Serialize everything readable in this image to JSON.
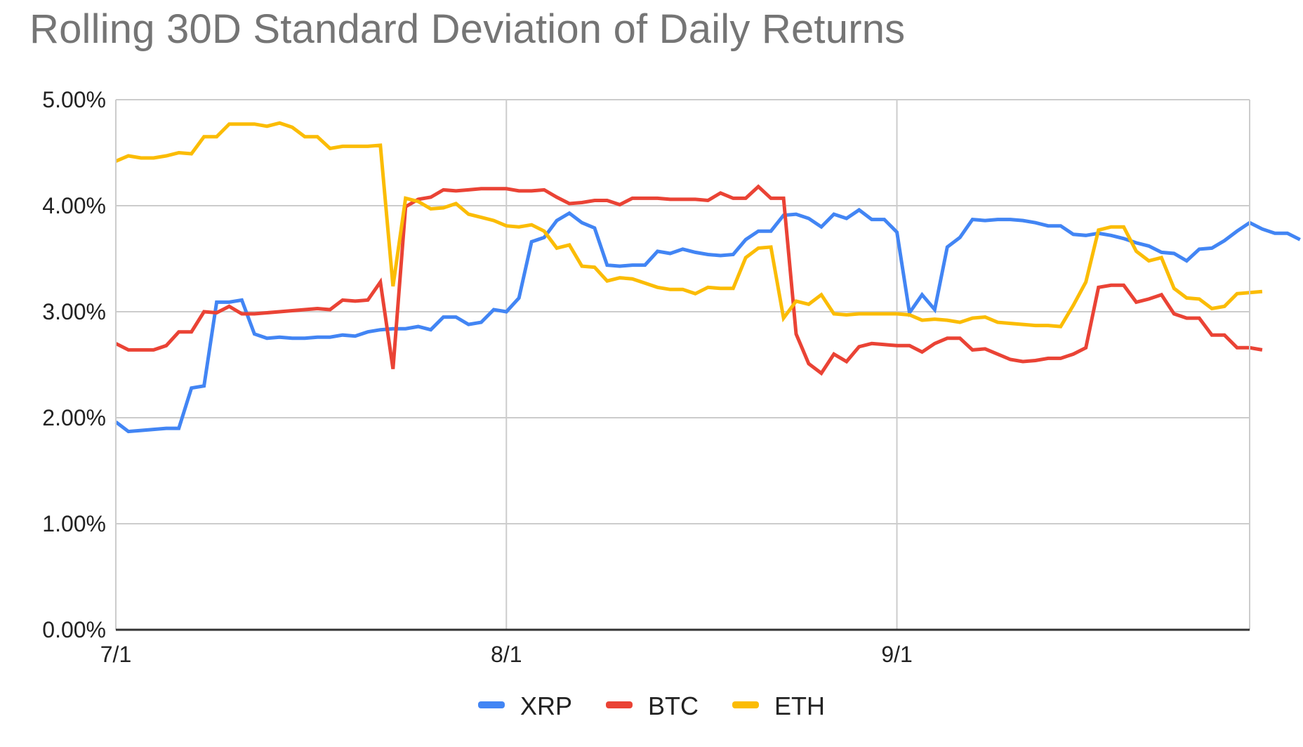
{
  "chart_data": {
    "type": "line",
    "title": "Rolling 30D Standard Deviation of Daily Returns",
    "xlabel": "",
    "ylabel": "",
    "ylim": [
      0,
      0.05
    ],
    "yticks": [
      {
        "value": 0.0,
        "label": "0.00%"
      },
      {
        "value": 0.01,
        "label": "1.00%"
      },
      {
        "value": 0.02,
        "label": "2.00%"
      },
      {
        "value": 0.03,
        "label": "3.00%"
      },
      {
        "value": 0.04,
        "label": "4.00%"
      },
      {
        "value": 0.05,
        "label": "5.00%"
      }
    ],
    "xticks": [
      {
        "value": 0,
        "label": "7/1"
      },
      {
        "value": 31,
        "label": "8/1"
      },
      {
        "value": 62,
        "label": "9/1"
      }
    ],
    "x_range": [
      0,
      90
    ],
    "x_note": "day offset from 7/1",
    "grid": true,
    "legend_position": "bottom",
    "series": [
      {
        "name": "XRP",
        "color": "#4285F4",
        "values": [
          1.96,
          1.87,
          1.88,
          1.89,
          1.9,
          1.9,
          2.28,
          2.3,
          3.09,
          3.09,
          3.11,
          2.79,
          2.75,
          2.76,
          2.75,
          2.75,
          2.76,
          2.76,
          2.78,
          2.77,
          2.81,
          2.83,
          2.84,
          2.84,
          2.86,
          2.83,
          2.95,
          2.95,
          2.88,
          2.9,
          3.02,
          3.0,
          3.13,
          3.66,
          3.7,
          3.86,
          3.93,
          3.84,
          3.79,
          3.44,
          3.43,
          3.44,
          3.44,
          3.57,
          3.55,
          3.59,
          3.56,
          3.54,
          3.53,
          3.54,
          3.68,
          3.76,
          3.76,
          3.91,
          3.92,
          3.88,
          3.8,
          3.92,
          3.88,
          3.96,
          3.87,
          3.87,
          3.75,
          2.99,
          3.16,
          3.02,
          3.61,
          3.7,
          3.87,
          3.86,
          3.87,
          3.87,
          3.86,
          3.84,
          3.81,
          3.81,
          3.73,
          3.72,
          3.74,
          3.72,
          3.69,
          3.65,
          3.62,
          3.56,
          3.55,
          3.48,
          3.59,
          3.6,
          3.67,
          3.76,
          3.84,
          3.78,
          3.74,
          3.74,
          3.68
        ]
      },
      {
        "name": "BTC",
        "color": "#EA4335",
        "values": [
          2.7,
          2.64,
          2.64,
          2.64,
          2.68,
          2.81,
          2.81,
          3.0,
          2.99,
          3.05,
          2.98,
          2.98,
          2.99,
          3.0,
          3.01,
          3.02,
          3.03,
          3.02,
          3.11,
          3.1,
          3.11,
          3.28,
          2.46,
          3.99,
          4.06,
          4.08,
          4.15,
          4.14,
          4.15,
          4.16,
          4.16,
          4.16,
          4.14,
          4.14,
          4.15,
          4.08,
          4.02,
          4.03,
          4.05,
          4.05,
          4.01,
          4.07,
          4.07,
          4.07,
          4.06,
          4.06,
          4.06,
          4.05,
          4.12,
          4.07,
          4.07,
          4.18,
          4.07,
          4.07,
          2.79,
          2.51,
          2.42,
          2.6,
          2.53,
          2.67,
          2.7,
          2.69,
          2.68,
          2.68,
          2.62,
          2.7,
          2.75,
          2.75,
          2.64,
          2.65,
          2.6,
          2.55,
          2.53,
          2.54,
          2.56,
          2.56,
          2.6,
          2.66,
          3.23,
          3.25,
          3.25,
          3.09,
          3.12,
          3.16,
          2.98,
          2.94,
          2.94,
          2.78,
          2.78,
          2.66,
          2.66,
          2.64
        ]
      },
      {
        "name": "ETH",
        "color": "#FBBC04",
        "values": [
          4.42,
          4.47,
          4.45,
          4.45,
          4.47,
          4.5,
          4.49,
          4.65,
          4.65,
          4.77,
          4.77,
          4.77,
          4.75,
          4.78,
          4.74,
          4.65,
          4.65,
          4.54,
          4.56,
          4.56,
          4.56,
          4.57,
          3.24,
          4.07,
          4.04,
          3.97,
          3.98,
          4.02,
          3.92,
          3.89,
          3.86,
          3.81,
          3.8,
          3.82,
          3.76,
          3.6,
          3.63,
          3.43,
          3.42,
          3.29,
          3.32,
          3.31,
          3.27,
          3.23,
          3.21,
          3.21,
          3.17,
          3.23,
          3.22,
          3.22,
          3.51,
          3.6,
          3.61,
          2.94,
          3.1,
          3.07,
          3.16,
          2.98,
          2.97,
          2.98,
          2.98,
          2.98,
          2.98,
          2.97,
          2.92,
          2.93,
          2.92,
          2.9,
          2.94,
          2.95,
          2.9,
          2.89,
          2.88,
          2.87,
          2.87,
          2.86,
          3.06,
          3.28,
          3.77,
          3.8,
          3.8,
          3.57,
          3.48,
          3.51,
          3.22,
          3.13,
          3.12,
          3.03,
          3.05,
          3.17,
          3.18,
          3.19
        ]
      }
    ]
  }
}
